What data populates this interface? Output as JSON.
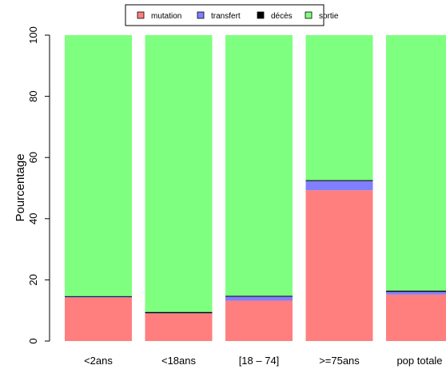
{
  "colors": {
    "mutation": "#FF7F7F",
    "transfert": "#7F7FFF",
    "deces": "#000000",
    "sortie": "#7FFF7F"
  },
  "chart_data": {
    "type": "bar",
    "stacked": true,
    "title": "",
    "xlabel": "",
    "ylabel": "Pourcentage",
    "ylim": [
      0,
      100
    ],
    "yticks": [
      0,
      20,
      40,
      60,
      80,
      100
    ],
    "grid": false,
    "legend_position": "top",
    "categories": [
      "<2ans",
      "<18ans",
      "[18 – 74]",
      ">=75ans",
      "pop totale"
    ],
    "series": [
      {
        "name": "mutation",
        "color": "#FF7F7F",
        "values": [
          14.2,
          9.0,
          13.2,
          49.3,
          15.2
        ]
      },
      {
        "name": "transfert",
        "color": "#7F7FFF",
        "values": [
          0.2,
          0.1,
          1.3,
          3.0,
          0.9
        ]
      },
      {
        "name": "décès",
        "color": "#000000",
        "values": [
          0.3,
          0.4,
          0.3,
          0.3,
          0.4
        ]
      },
      {
        "name": "sortie",
        "color": "#7FFF7F",
        "values": [
          85.3,
          90.5,
          85.2,
          47.4,
          83.5
        ]
      }
    ]
  }
}
